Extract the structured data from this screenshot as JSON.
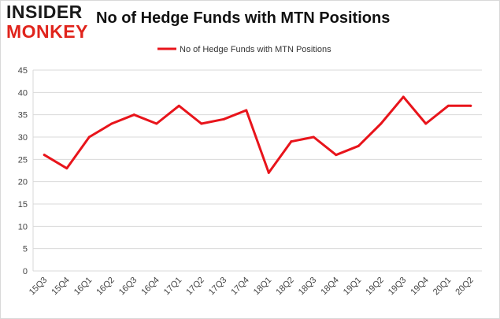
{
  "header": {
    "logo_line1": "INSIDER",
    "logo_line2": "MONKEY",
    "title": "No of Hedge Funds with MTN Positions"
  },
  "colors": {
    "series_line": "#e8141b",
    "grid": "#d9d9d9",
    "logo_red": "#e0241c"
  },
  "chart_data": {
    "type": "line",
    "title": "No of Hedge Funds with MTN Positions",
    "xlabel": "",
    "ylabel": "",
    "ylim": [
      0,
      45
    ],
    "yticks": [
      0,
      5,
      10,
      15,
      20,
      25,
      30,
      35,
      40,
      45
    ],
    "grid": "horizontal",
    "legend_position": "top-center",
    "categories": [
      "15Q3",
      "15Q4",
      "16Q1",
      "16Q2",
      "16Q3",
      "16Q4",
      "17Q1",
      "17Q2",
      "17Q3",
      "17Q4",
      "18Q1",
      "18Q2",
      "18Q3",
      "18Q4",
      "19Q1",
      "19Q2",
      "19Q3",
      "19Q4",
      "20Q1",
      "20Q2"
    ],
    "series": [
      {
        "name": "No of Hedge Funds with MTN Positions",
        "values": [
          26,
          23,
          30,
          33,
          35,
          33,
          37,
          33,
          34,
          36,
          22,
          29,
          30,
          26,
          28,
          33,
          39,
          33,
          37,
          37
        ]
      }
    ]
  }
}
